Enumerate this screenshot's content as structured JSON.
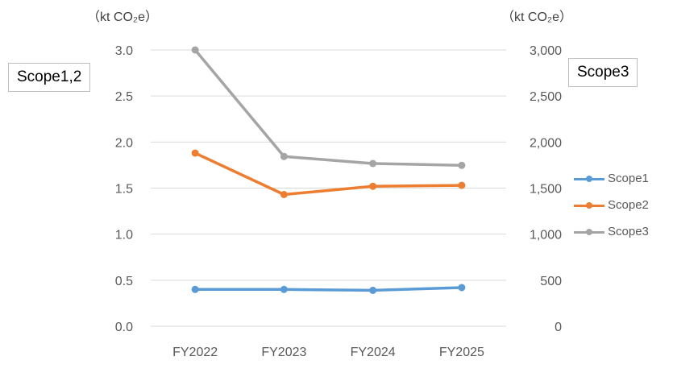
{
  "chart_data": {
    "type": "line",
    "categories": [
      "FY2022",
      "FY2023",
      "FY2024",
      "FY2025"
    ],
    "left_axis": {
      "unit": "（kt CO₂e）",
      "title": "Scope1,2",
      "ylim": [
        0,
        3.0
      ],
      "ticks": [
        "0.0",
        "0.5",
        "1.0",
        "1.5",
        "2.0",
        "2.5",
        "3.0"
      ]
    },
    "right_axis": {
      "unit": "（kt CO₂e）",
      "title": "Scope3",
      "ylim": [
        0,
        3000
      ],
      "ticks": [
        "0",
        "500",
        "1,000",
        "1,500",
        "2,000",
        "2,500",
        "3,000"
      ]
    },
    "grid": true,
    "legend_position": "right",
    "series": [
      {
        "name": "Scope1",
        "axis": "left",
        "color": "#5b9bd5",
        "values": [
          0.4,
          0.4,
          0.39,
          0.42
        ]
      },
      {
        "name": "Scope2",
        "axis": "left",
        "color": "#ed7d31",
        "values": [
          1.88,
          1.43,
          1.52,
          1.53
        ]
      },
      {
        "name": "Scope3",
        "axis": "right",
        "color": "#a5a5a5",
        "values": [
          3000,
          1843,
          1767,
          1747
        ]
      }
    ]
  }
}
